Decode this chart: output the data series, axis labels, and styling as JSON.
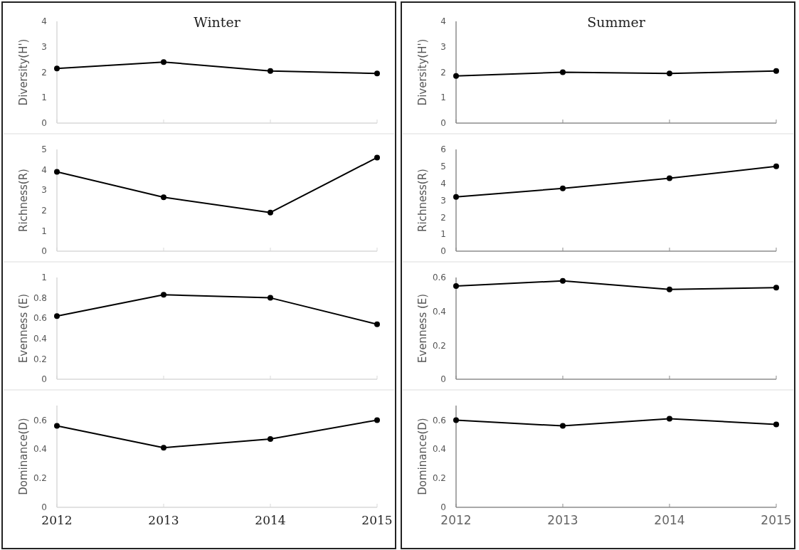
{
  "chart_data": [
    {
      "type": "line",
      "title": "Winter",
      "ylabel": "Diversity(H')",
      "categories": [
        "2012",
        "2013",
        "2014",
        "2015"
      ],
      "values": [
        2.15,
        2.4,
        2.05,
        1.95
      ],
      "color": "#000000",
      "ylim": [
        0,
        4
      ],
      "yticks": [
        0,
        1,
        2,
        3,
        4
      ],
      "marker": "circle",
      "tick_labels": "y"
    },
    {
      "type": "line",
      "title": "Summer",
      "ylabel": "Diversity(H')",
      "categories": [
        "2012",
        "2013",
        "2014",
        "2015"
      ],
      "values": [
        1.85,
        2.0,
        1.95,
        2.05
      ],
      "color": "#000000",
      "ylim": [
        0,
        4
      ],
      "yticks": [
        0,
        1,
        2,
        3,
        4
      ],
      "marker": "circle",
      "tick_labels": "y"
    },
    {
      "type": "line",
      "ylabel": "Richness(R)",
      "categories": [
        "2012",
        "2013",
        "2014",
        "2015"
      ],
      "values": [
        3.9,
        2.65,
        1.9,
        4.6
      ],
      "color": "#000000",
      "ylim": [
        0,
        5
      ],
      "yticks": [
        0,
        1,
        2,
        3,
        4,
        5
      ],
      "marker": "circle",
      "tick_labels": "y"
    },
    {
      "type": "line",
      "ylabel": "Richness(R)",
      "categories": [
        "2012",
        "2013",
        "2014",
        "2015"
      ],
      "values": [
        3.2,
        3.7,
        4.3,
        5.0
      ],
      "color": "#000000",
      "ylim": [
        0,
        6
      ],
      "yticks": [
        0,
        1,
        2,
        3,
        4,
        5,
        6
      ],
      "marker": "circle",
      "tick_labels": "y"
    },
    {
      "type": "line",
      "ylabel": "Evenness (E)",
      "categories": [
        "2012",
        "2013",
        "2014",
        "2015"
      ],
      "values": [
        0.62,
        0.83,
        0.8,
        0.54
      ],
      "color": "#000000",
      "ylim": [
        0,
        1
      ],
      "yticks": [
        0,
        0.2,
        0.4,
        0.6,
        0.8,
        1
      ],
      "marker": "circle",
      "tick_labels": "y"
    },
    {
      "type": "line",
      "ylabel": "Evenness (E)",
      "categories": [
        "2012",
        "2013",
        "2014",
        "2015"
      ],
      "values": [
        0.55,
        0.58,
        0.53,
        0.54
      ],
      "color": "#000000",
      "ylim": [
        0,
        0.6
      ],
      "yticks": [
        0,
        0.2,
        0.4,
        0.6
      ],
      "marker": "circle",
      "tick_labels": "y"
    },
    {
      "type": "line",
      "ylabel": "Dominance(D)",
      "categories": [
        "2012",
        "2013",
        "2014",
        "2015"
      ],
      "values": [
        0.56,
        0.41,
        0.47,
        0.6
      ],
      "color": "#000000",
      "ylim": [
        0,
        0.7
      ],
      "yticks": [
        0,
        0.2,
        0.4,
        0.6
      ],
      "marker": "circle"
    },
    {
      "type": "line",
      "ylabel": "Dominance(D)",
      "categories": [
        "2012",
        "2013",
        "2014",
        "2015"
      ],
      "values": [
        0.6,
        0.56,
        0.61,
        0.57
      ],
      "color": "#000000",
      "ylim": [
        0,
        0.7
      ],
      "yticks": [
        0,
        0.2,
        0.4,
        0.6
      ],
      "marker": "circle"
    }
  ]
}
